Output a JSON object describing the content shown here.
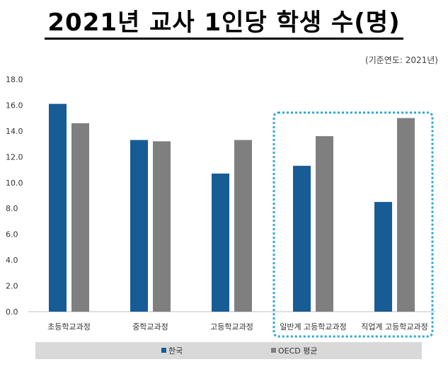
{
  "title": "2021년 교사 1인당 학생 수(명)",
  "note": "(기준연도: 2021년)",
  "colors": {
    "korea": "#185C96",
    "oecd": "#7F7F7F",
    "highlight": "#2BA8D8",
    "legend_bg": "#D9D9D9"
  },
  "chart_data": {
    "type": "bar",
    "categories": [
      "초등학교과정",
      "중학교과정",
      "고등학교과정",
      "일반계 고등학교과정",
      "직업계 고등학교과정"
    ],
    "series": [
      {
        "name": "한국",
        "values": [
          16.1,
          13.3,
          10.7,
          11.3,
          8.5
        ]
      },
      {
        "name": "OECD 평균",
        "values": [
          14.6,
          13.2,
          13.3,
          13.6,
          15.0
        ]
      }
    ],
    "ylim": [
      0,
      18
    ],
    "yticks": [
      "0.0",
      "2.0",
      "4.0",
      "6.0",
      "8.0",
      "10.0",
      "12.0",
      "14.0",
      "16.0",
      "18.0"
    ],
    "legend_position": "bottom",
    "highlighted_categories": [
      "일반계 고등학교과정",
      "직업계 고등학교과정"
    ]
  }
}
